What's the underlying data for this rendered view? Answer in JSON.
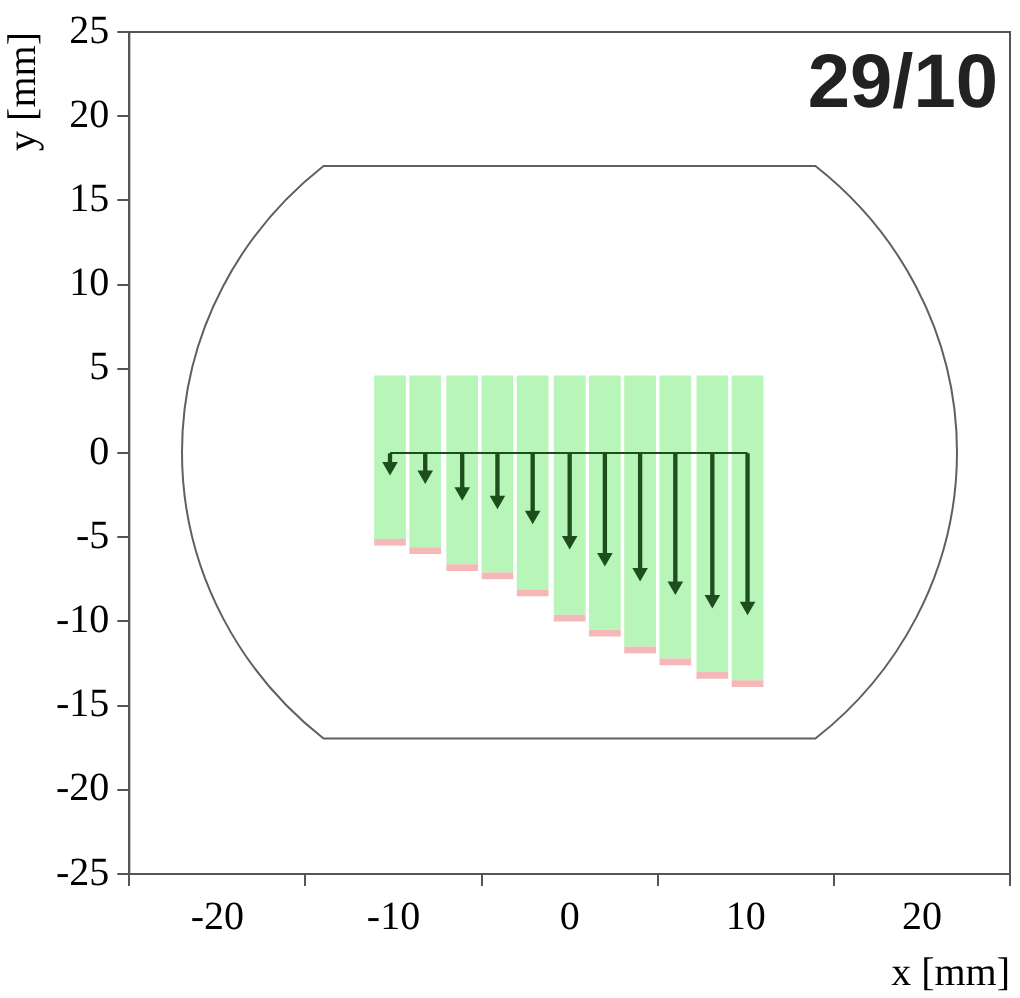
{
  "chart_data": {
    "type": "bar",
    "xlabel": "x [mm]",
    "ylabel": "y [mm]",
    "annotations": [
      "29/10"
    ],
    "x": [
      -10.2,
      -8.2,
      -6.1,
      -4.1,
      -2.1,
      0,
      2.0,
      4.0,
      6.0,
      8.1,
      10.1
    ],
    "xlim": [
      -25,
      25
    ],
    "xticks": [
      -20,
      -10,
      0,
      10,
      20
    ],
    "ylim": [
      -25,
      25
    ],
    "yticks": [
      -25,
      -20,
      -15,
      -10,
      -5,
      0,
      5,
      10,
      15,
      20,
      25
    ],
    "grid": false,
    "legend": false,
    "series": [
      {
        "type": "bar",
        "color": "#b8f5b8",
        "base": [
          4.6,
          4.6,
          4.6,
          4.6,
          4.6,
          4.6,
          4.6,
          4.6,
          4.6,
          4.6,
          4.6
        ],
        "values": [
          -9.7,
          -10.2,
          -11.2,
          -11.7,
          -12.7,
          -14.2,
          -15.1,
          -16.1,
          -16.8,
          -17.6,
          -18.1
        ]
      },
      {
        "type": "bar",
        "color": "#f5b8b8",
        "base": [
          -5.1,
          -5.6,
          -6.6,
          -7.1,
          -8.1,
          -9.6,
          -10.5,
          -11.5,
          -12.2,
          -13.0,
          -13.5
        ],
        "values": [
          -0.4,
          -0.4,
          -0.4,
          -0.4,
          -0.4,
          -0.4,
          -0.4,
          -0.4,
          -0.4,
          -0.4,
          -0.4
        ]
      },
      {
        "type": "lollipop",
        "color": "#1e4d1e",
        "marker": "triangle",
        "values": [
          -0.8,
          -1.3,
          -2.3,
          -2.8,
          -3.7,
          -5.2,
          -6.2,
          -7.1,
          -7.9,
          -8.7,
          -9.1
        ]
      },
      {
        "type": "line",
        "color": "#1e4d1e",
        "marker": "none",
        "x": [
          -10.2,
          10.1
        ],
        "values": [
          0,
          0
        ]
      }
    ]
  }
}
